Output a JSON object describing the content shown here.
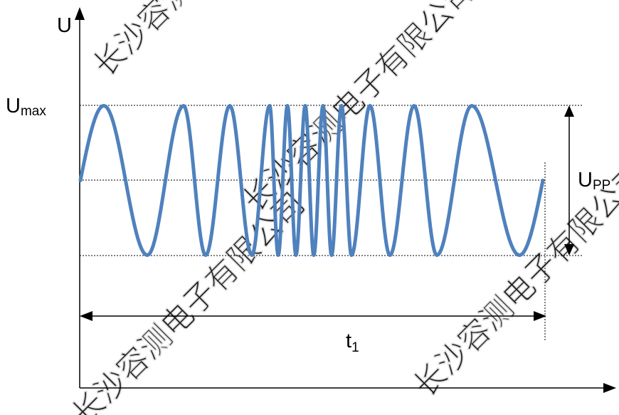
{
  "axes": {
    "y_label": "U"
  },
  "labels": {
    "u_max_main": "U",
    "u_max_sub": "max",
    "u_pp_main": "U",
    "u_pp_sub": "PP",
    "t1_main": "t",
    "t1_sub": "1"
  },
  "watermark": {
    "text": "长沙容测电子有限公司"
  },
  "colors": {
    "wave": "#4f81bd",
    "axis": "#000000",
    "watermark": "#d9d9d9"
  }
}
